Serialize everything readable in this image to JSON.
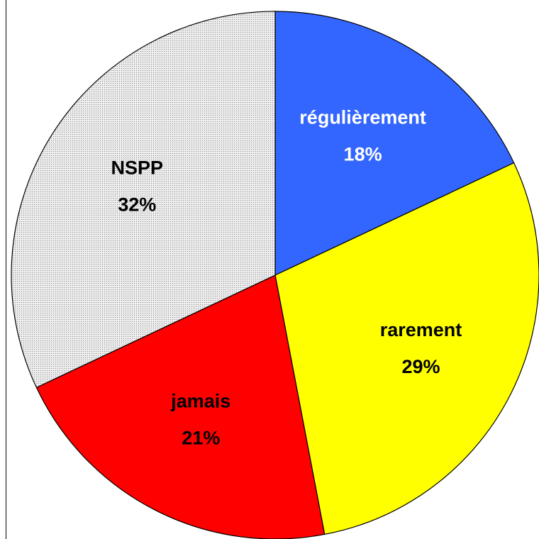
{
  "chart_data": {
    "type": "pie",
    "categories": [
      "régulièrement",
      "rarement",
      "jamais",
      "NSPP"
    ],
    "values": [
      18,
      29,
      21,
      32
    ],
    "value_labels": [
      "18%",
      "29%",
      "21%",
      "32%"
    ],
    "colors": [
      "#3366ff",
      "#ffff00",
      "#ff0000",
      "#d8d8d8"
    ],
    "label_colors": [
      "#ffffff",
      "#000000",
      "#000000",
      "#000000"
    ]
  }
}
